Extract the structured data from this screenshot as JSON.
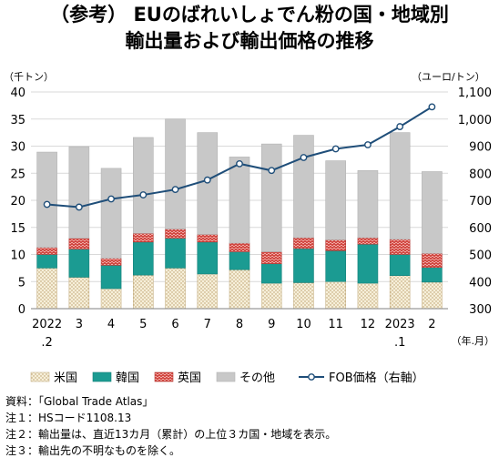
{
  "title_line1": "（参考） EUのばれいしょでん粉の国・地域別",
  "title_line2": "輸出量および輸出価格の推移",
  "unit_left": "（千トン）",
  "unit_right": "（ユーロ/トン）",
  "x_unit": "（年.月）",
  "notes": [
    "資料：「Global Trade Atlas」",
    "注１：HSコード1108.13",
    "注２：輸出量は、直近13カ月（累計）の上位３カ国・地域を表示。",
    "注３：輸出先の不明なものを除く。"
  ],
  "chart_data": {
    "type": "bar",
    "stacked": true,
    "categories": [
      "2022\n.2",
      "3",
      "4",
      "5",
      "6",
      "7",
      "8",
      "9",
      "10",
      "11",
      "12",
      "2023\n.1",
      "2"
    ],
    "series": [
      {
        "name": "米国",
        "color": "#f3ecd6",
        "values": [
          7.5,
          5.8,
          3.7,
          6.2,
          7.5,
          6.4,
          7.2,
          4.7,
          4.8,
          5.0,
          4.7,
          6.1,
          4.9
        ]
      },
      {
        "name": "韓国",
        "color": "#1b9b92",
        "values": [
          2.5,
          5.2,
          4.3,
          6.1,
          5.5,
          5.9,
          3.3,
          3.6,
          6.3,
          5.7,
          7.2,
          3.9,
          2.7
        ]
      },
      {
        "name": "英国",
        "color": "#d9534f",
        "values": [
          1.3,
          2.0,
          1.3,
          1.6,
          1.7,
          1.4,
          1.6,
          2.2,
          2.0,
          2.0,
          1.2,
          2.8,
          2.6
        ]
      },
      {
        "name": "その他",
        "color": "#c8c8c8",
        "values": [
          17.6,
          16.9,
          16.6,
          17.7,
          20.3,
          18.8,
          15.9,
          19.9,
          18.9,
          14.6,
          12.4,
          19.7,
          15.1
        ]
      }
    ],
    "line_series": {
      "name": "FOB価格（右軸）",
      "color": "#1f4e79",
      "values": [
        685,
        675,
        705,
        720,
        740,
        775,
        835,
        810,
        858,
        890,
        905,
        972,
        1045
      ]
    },
    "ylim_left": [
      0,
      40
    ],
    "yticks_left": [
      0,
      5,
      10,
      15,
      20,
      25,
      30,
      35,
      40
    ],
    "ylim_right": [
      300,
      1100
    ],
    "yticks_right": [
      "300",
      "400",
      "500",
      "600",
      "700",
      "800",
      "900",
      "1,000",
      "1,100"
    ],
    "legend_position": "bottom"
  }
}
